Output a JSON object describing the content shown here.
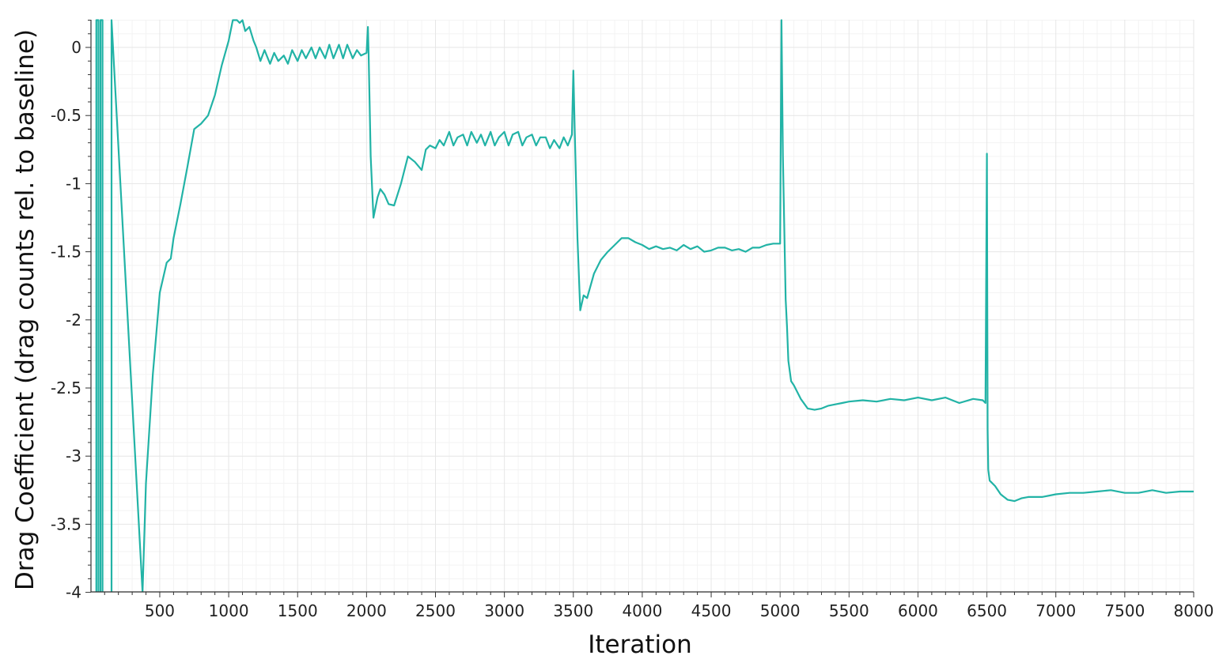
{
  "chart_data": {
    "type": "line",
    "title": "",
    "xlabel": "Iteration",
    "ylabel": "Drag Coefficient (drag counts rel. to baseline)",
    "xlim": [
      1,
      8000
    ],
    "ylim": [
      -4,
      0.2
    ],
    "grid": true,
    "minor_grid": true,
    "x_ticks": [
      500,
      1000,
      1500,
      2000,
      2500,
      3000,
      3500,
      4000,
      4500,
      5000,
      5500,
      6000,
      6500,
      7000,
      7500,
      8000
    ],
    "x_tick_labels": [
      "500",
      "1000",
      "1500",
      "2000",
      "2500",
      "3000",
      "3500",
      "4000",
      "4500",
      "5000",
      "5500",
      "6000",
      "6500",
      "7000",
      "7500",
      "8000"
    ],
    "y_ticks": [
      0,
      -0.5,
      -1,
      -1.5,
      -2,
      -2.5,
      -3,
      -3.5,
      -4
    ],
    "y_tick_labels": [
      "0",
      "-0.5",
      "-1",
      "-1.5",
      "-2",
      "-2.5",
      "-3",
      "-3.5",
      "-4"
    ],
    "colors": {
      "line": "#22b3a6",
      "grid": "#e6e6e6",
      "grid_minor": "#f3f3f3",
      "axis": "#333333"
    },
    "series": [
      {
        "x": [
          40,
          40,
          55,
          55,
          70,
          70,
          85,
          85,
          150,
          150,
          375,
          400,
          450,
          500,
          550,
          580,
          600,
          650,
          700,
          750,
          800,
          850,
          900,
          950,
          1000,
          1030,
          1060,
          1080,
          1100,
          1120,
          1150,
          1180,
          1200,
          1230,
          1260,
          1300,
          1330,
          1360,
          1400,
          1430,
          1460,
          1500,
          1530,
          1560,
          1600,
          1630,
          1660,
          1700,
          1730,
          1760,
          1800,
          1830,
          1860,
          1900,
          1930,
          1960,
          2000,
          2010,
          2015,
          2030,
          2050,
          2080,
          2100,
          2130,
          2160,
          2200,
          2250,
          2300,
          2350,
          2400,
          2430,
          2460,
          2500,
          2530,
          2560,
          2600,
          2630,
          2660,
          2700,
          2730,
          2760,
          2800,
          2830,
          2860,
          2900,
          2930,
          2960,
          3000,
          3030,
          3060,
          3100,
          3130,
          3160,
          3200,
          3230,
          3260,
          3300,
          3330,
          3360,
          3400,
          3430,
          3460,
          3490,
          3500,
          3510,
          3530,
          3550,
          3575,
          3600,
          3650,
          3700,
          3750,
          3800,
          3850,
          3900,
          3950,
          4000,
          4050,
          4100,
          4150,
          4200,
          4250,
          4300,
          4350,
          4400,
          4450,
          4500,
          4550,
          4600,
          4650,
          4700,
          4750,
          4800,
          4850,
          4900,
          4950,
          5000,
          5010,
          5020,
          5040,
          5050,
          5060,
          5080,
          5100,
          5150,
          5200,
          5250,
          5300,
          5350,
          5400,
          5450,
          5500,
          5600,
          5700,
          5800,
          5900,
          6000,
          6100,
          6200,
          6300,
          6400,
          6470,
          6490,
          6500,
          6505,
          6510,
          6520,
          6540,
          6560,
          6600,
          6650,
          6700,
          6750,
          6800,
          6900,
          7000,
          7100,
          7200,
          7300,
          7400,
          7500,
          7600,
          7700,
          7800,
          7900,
          8000
        ],
        "y": [
          -4,
          0.2,
          0.2,
          -4,
          -4,
          0.2,
          0.2,
          -4,
          -4,
          0.2,
          -4,
          -3.2,
          -2.4,
          -1.8,
          -1.58,
          -1.55,
          -1.4,
          -1.15,
          -0.88,
          -0.6,
          -0.56,
          -0.5,
          -0.35,
          -0.13,
          0.05,
          0.2,
          0.2,
          0.18,
          0.2,
          0.12,
          0.15,
          0.05,
          0.0,
          -0.1,
          -0.02,
          -0.12,
          -0.04,
          -0.1,
          -0.06,
          -0.12,
          -0.02,
          -0.1,
          -0.02,
          -0.08,
          0.0,
          -0.08,
          0.0,
          -0.08,
          0.02,
          -0.08,
          0.02,
          -0.08,
          0.02,
          -0.08,
          -0.02,
          -0.06,
          -0.04,
          0.15,
          -0.05,
          -0.8,
          -1.25,
          -1.1,
          -1.04,
          -1.08,
          -1.15,
          -1.16,
          -1.0,
          -0.8,
          -0.84,
          -0.9,
          -0.75,
          -0.72,
          -0.74,
          -0.68,
          -0.72,
          -0.62,
          -0.72,
          -0.66,
          -0.64,
          -0.72,
          -0.62,
          -0.7,
          -0.64,
          -0.72,
          -0.62,
          -0.72,
          -0.66,
          -0.62,
          -0.72,
          -0.64,
          -0.62,
          -0.72,
          -0.66,
          -0.64,
          -0.72,
          -0.66,
          -0.66,
          -0.74,
          -0.68,
          -0.74,
          -0.66,
          -0.72,
          -0.64,
          -0.17,
          -0.6,
          -1.4,
          -1.93,
          -1.82,
          -1.84,
          -1.66,
          -1.56,
          -1.5,
          -1.45,
          -1.4,
          -1.4,
          -1.43,
          -1.45,
          -1.48,
          -1.46,
          -1.48,
          -1.47,
          -1.49,
          -1.45,
          -1.48,
          -1.46,
          -1.5,
          -1.49,
          -1.47,
          -1.47,
          -1.49,
          -1.48,
          -1.5,
          -1.47,
          -1.47,
          -1.45,
          -1.44,
          -1.44,
          0.2,
          -0.8,
          -1.85,
          -2.05,
          -2.3,
          -2.45,
          -2.48,
          -2.58,
          -2.65,
          -2.66,
          -2.65,
          -2.63,
          -2.62,
          -2.61,
          -2.6,
          -2.59,
          -2.6,
          -2.58,
          -2.59,
          -2.57,
          -2.59,
          -2.57,
          -2.61,
          -2.58,
          -2.59,
          -2.61,
          -0.78,
          -2.8,
          -3.1,
          -3.18,
          -3.2,
          -3.22,
          -3.28,
          -3.32,
          -3.33,
          -3.31,
          -3.3,
          -3.3,
          -3.28,
          -3.27,
          -3.27,
          -3.26,
          -3.25,
          -3.27,
          -3.27,
          -3.25,
          -3.27,
          -3.26,
          -3.26
        ]
      }
    ]
  }
}
